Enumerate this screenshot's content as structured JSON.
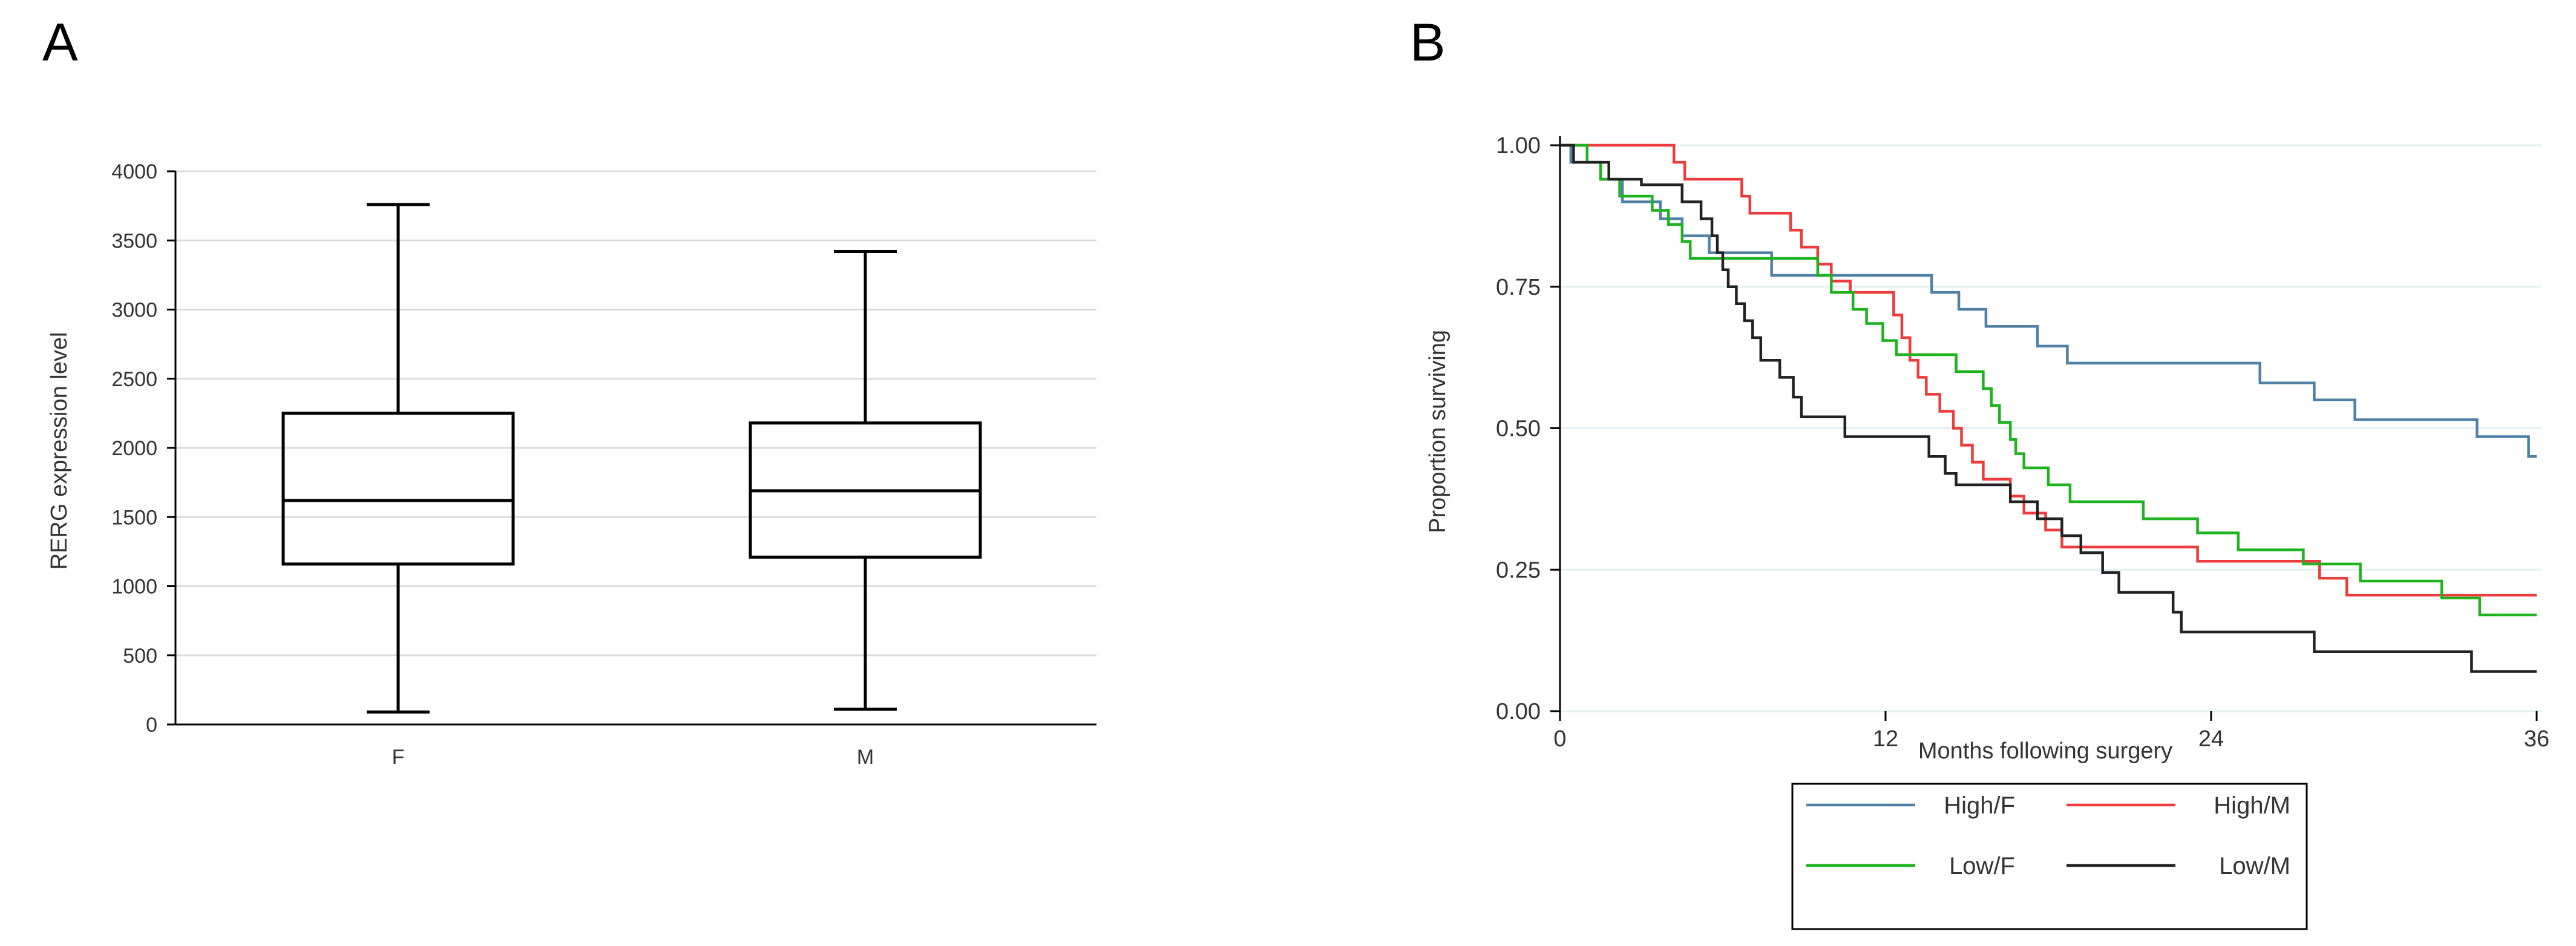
{
  "chart_data": [
    {
      "panel": "A",
      "type": "box",
      "ylabel": "RERG expression level",
      "xlabel": "",
      "ylim": [
        0,
        4000
      ],
      "yticks": [
        0,
        500,
        1000,
        1500,
        2000,
        2500,
        3000,
        3500,
        4000
      ],
      "grid": true,
      "categories": [
        "F",
        "M"
      ],
      "boxes": [
        {
          "category": "F",
          "whisker_low": 90,
          "q1": 1160,
          "median": 1620,
          "q3": 2250,
          "whisker_high": 3760
        },
        {
          "category": "M",
          "whisker_low": 110,
          "q1": 1210,
          "median": 1690,
          "q3": 2180,
          "whisker_high": 3420
        }
      ]
    },
    {
      "panel": "B",
      "type": "line",
      "step": true,
      "xlabel": "Months following surgery",
      "ylabel": "Proportion surviving",
      "xlim": [
        0,
        36
      ],
      "ylim": [
        0,
        1
      ],
      "xticks": [
        0,
        12,
        24,
        36
      ],
      "yticks": [
        "0.00",
        "0.25",
        "0.50",
        "0.75",
        "1.00"
      ],
      "grid": true,
      "legend_position": "bottom",
      "series": [
        {
          "name": "High/F",
          "color": "#4f81a6",
          "points": [
            [
              0,
              1.0
            ],
            [
              0.4,
              0.97
            ],
            [
              1.0,
              0.97
            ],
            [
              1.5,
              0.94
            ],
            [
              2.3,
              0.9
            ],
            [
              3.7,
              0.87
            ],
            [
              4.5,
              0.84
            ],
            [
              5.5,
              0.81
            ],
            [
              7.8,
              0.77
            ],
            [
              13.7,
              0.74
            ],
            [
              14.7,
              0.71
            ],
            [
              15.7,
              0.68
            ],
            [
              17.6,
              0.645
            ],
            [
              18.7,
              0.615
            ],
            [
              25.8,
              0.58
            ],
            [
              27.8,
              0.55
            ],
            [
              29.3,
              0.515
            ],
            [
              33.8,
              0.485
            ],
            [
              35.7,
              0.45
            ],
            [
              36,
              0.45
            ]
          ]
        },
        {
          "name": "High/M",
          "color": "#ee3b3b",
          "points": [
            [
              0,
              1.0
            ],
            [
              4.2,
              0.97
            ],
            [
              4.6,
              0.94
            ],
            [
              6.7,
              0.91
            ],
            [
              7.0,
              0.88
            ],
            [
              8.5,
              0.85
            ],
            [
              8.9,
              0.82
            ],
            [
              9.5,
              0.79
            ],
            [
              10.0,
              0.76
            ],
            [
              10.7,
              0.74
            ],
            [
              12.3,
              0.7
            ],
            [
              12.6,
              0.66
            ],
            [
              12.9,
              0.62
            ],
            [
              13.2,
              0.59
            ],
            [
              13.5,
              0.56
            ],
            [
              14.0,
              0.53
            ],
            [
              14.5,
              0.5
            ],
            [
              14.8,
              0.47
            ],
            [
              15.2,
              0.44
            ],
            [
              15.6,
              0.41
            ],
            [
              16.6,
              0.38
            ],
            [
              17.1,
              0.35
            ],
            [
              17.9,
              0.32
            ],
            [
              18.5,
              0.29
            ],
            [
              23.5,
              0.265
            ],
            [
              28.0,
              0.235
            ],
            [
              29.0,
              0.205
            ],
            [
              33.5,
              0.205
            ],
            [
              36,
              0.205
            ]
          ]
        },
        {
          "name": "Low/F",
          "color": "#1eb21e",
          "points": [
            [
              0,
              1.0
            ],
            [
              1.0,
              0.97
            ],
            [
              1.5,
              0.94
            ],
            [
              2.2,
              0.91
            ],
            [
              3.4,
              0.885
            ],
            [
              4.0,
              0.86
            ],
            [
              4.5,
              0.83
            ],
            [
              4.8,
              0.8
            ],
            [
              9.5,
              0.77
            ],
            [
              10.0,
              0.74
            ],
            [
              10.8,
              0.71
            ],
            [
              11.3,
              0.685
            ],
            [
              11.9,
              0.655
            ],
            [
              12.4,
              0.63
            ],
            [
              14.6,
              0.6
            ],
            [
              15.6,
              0.57
            ],
            [
              15.9,
              0.54
            ],
            [
              16.2,
              0.51
            ],
            [
              16.6,
              0.48
            ],
            [
              16.8,
              0.455
            ],
            [
              17.1,
              0.43
            ],
            [
              18.0,
              0.4
            ],
            [
              18.8,
              0.37
            ],
            [
              21.5,
              0.34
            ],
            [
              23.5,
              0.315
            ],
            [
              25.0,
              0.285
            ],
            [
              27.4,
              0.26
            ],
            [
              29.5,
              0.23
            ],
            [
              32.5,
              0.2
            ],
            [
              33.9,
              0.17
            ],
            [
              36,
              0.17
            ]
          ]
        },
        {
          "name": "Low/M",
          "color": "#222222",
          "points": [
            [
              0,
              1.0
            ],
            [
              0.5,
              0.97
            ],
            [
              1.3,
              0.97
            ],
            [
              1.8,
              0.94
            ],
            [
              3.0,
              0.93
            ],
            [
              4.5,
              0.9
            ],
            [
              5.2,
              0.87
            ],
            [
              5.6,
              0.84
            ],
            [
              5.8,
              0.81
            ],
            [
              6.0,
              0.78
            ],
            [
              6.2,
              0.75
            ],
            [
              6.5,
              0.72
            ],
            [
              6.8,
              0.69
            ],
            [
              7.1,
              0.66
            ],
            [
              7.4,
              0.62
            ],
            [
              8.1,
              0.59
            ],
            [
              8.6,
              0.555
            ],
            [
              8.9,
              0.52
            ],
            [
              10.5,
              0.485
            ],
            [
              13.6,
              0.45
            ],
            [
              14.2,
              0.42
            ],
            [
              14.6,
              0.4
            ],
            [
              16.6,
              0.37
            ],
            [
              17.6,
              0.34
            ],
            [
              18.5,
              0.31
            ],
            [
              19.2,
              0.28
            ],
            [
              20.0,
              0.245
            ],
            [
              20.6,
              0.21
            ],
            [
              22.6,
              0.175
            ],
            [
              22.9,
              0.14
            ],
            [
              26.8,
              0.14
            ],
            [
              27.8,
              0.105
            ],
            [
              33.6,
              0.07
            ],
            [
              36,
              0.07
            ]
          ]
        }
      ]
    }
  ]
}
